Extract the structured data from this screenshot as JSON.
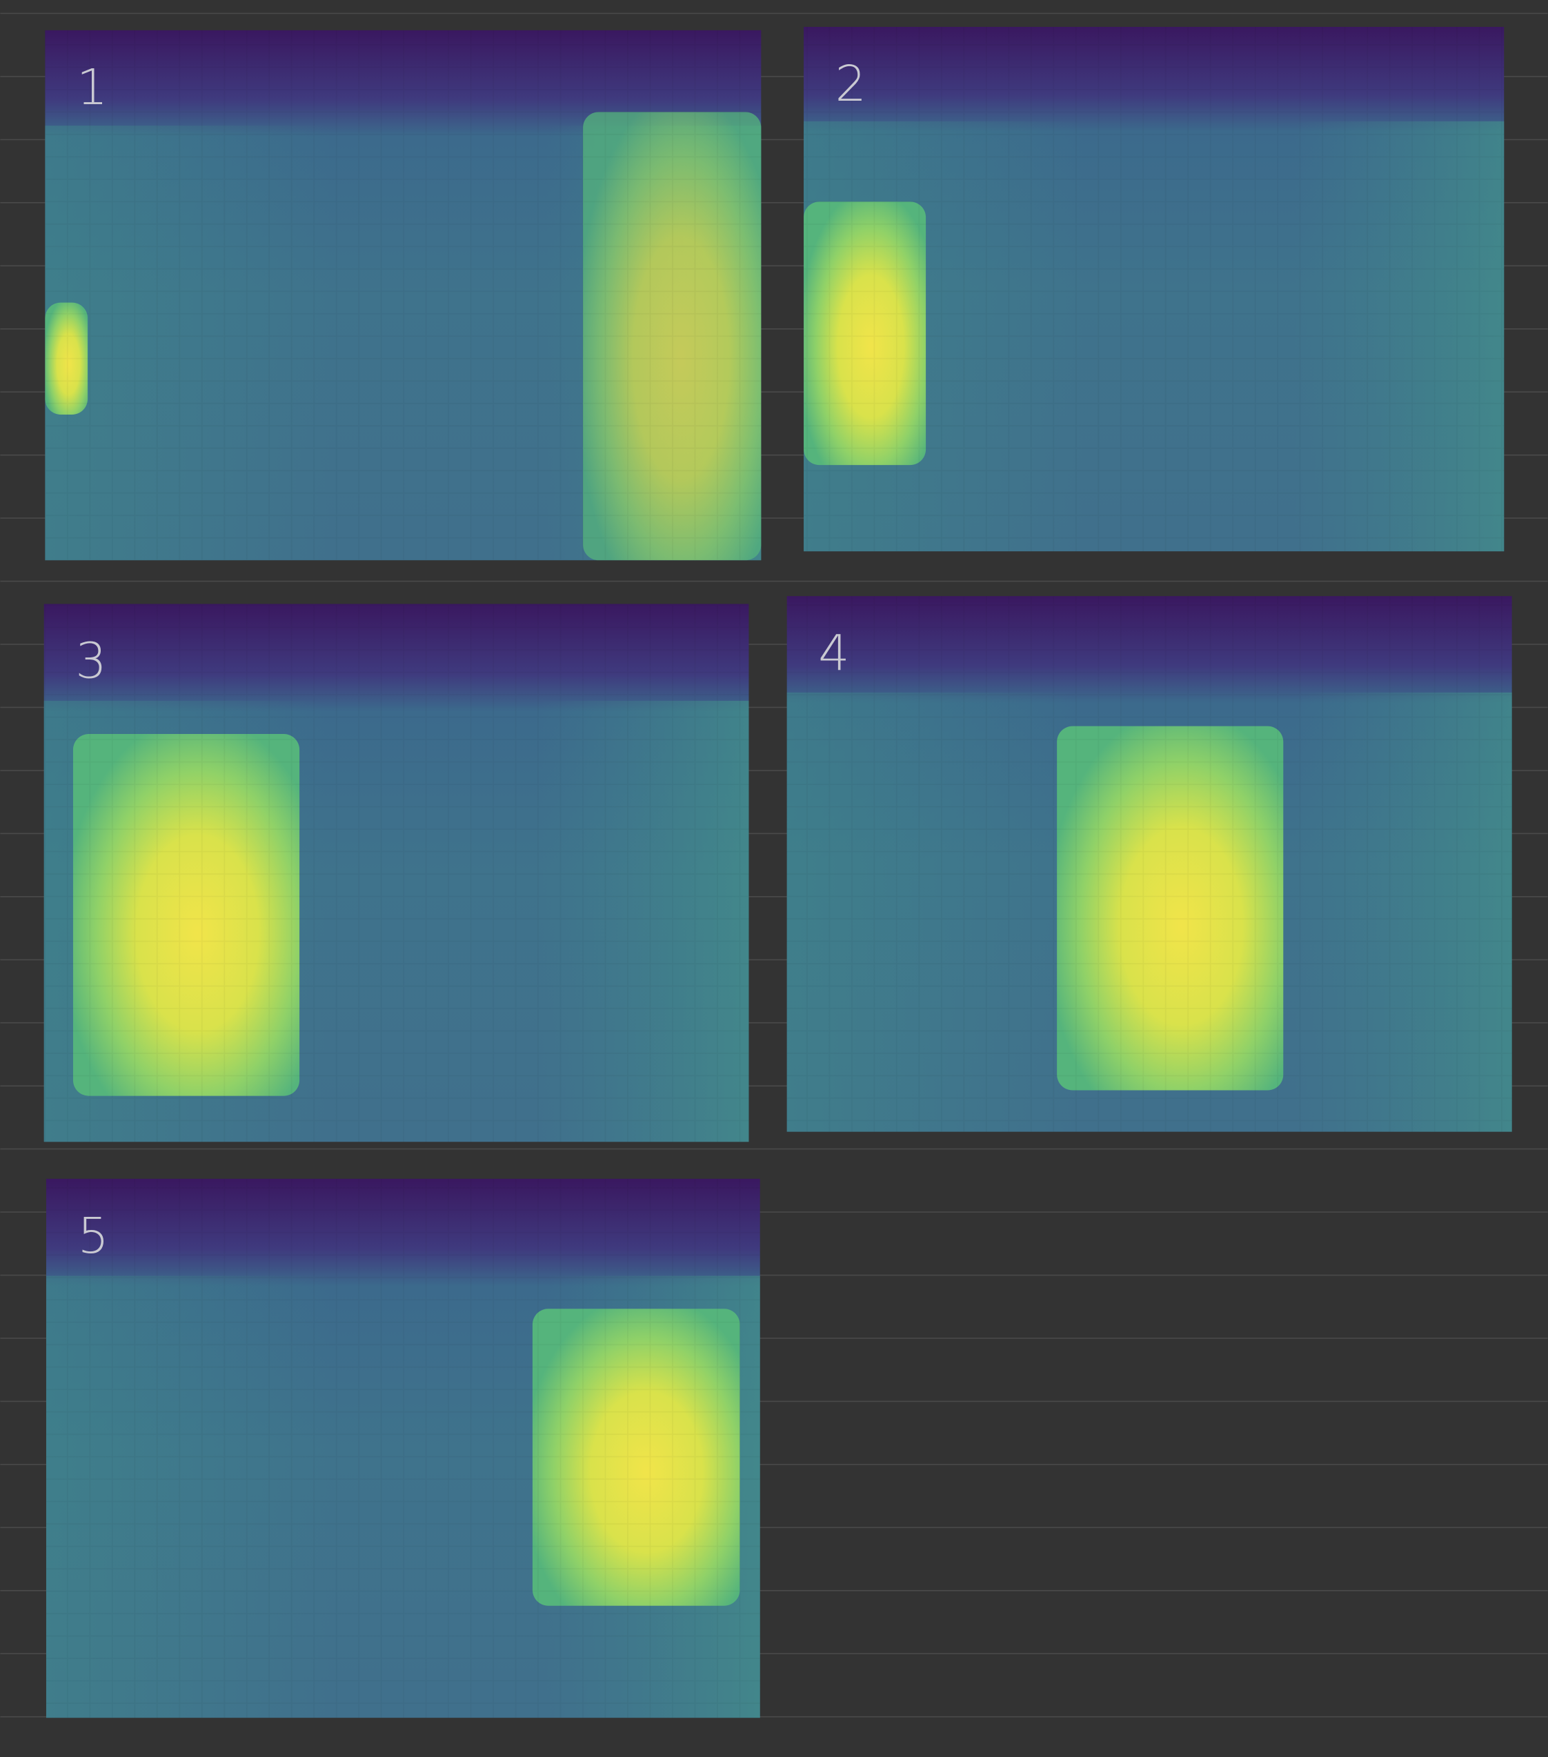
{
  "panels": [
    {
      "label": "1"
    },
    {
      "label": "2"
    },
    {
      "label": "3"
    },
    {
      "label": "4"
    },
    {
      "label": "5"
    }
  ]
}
